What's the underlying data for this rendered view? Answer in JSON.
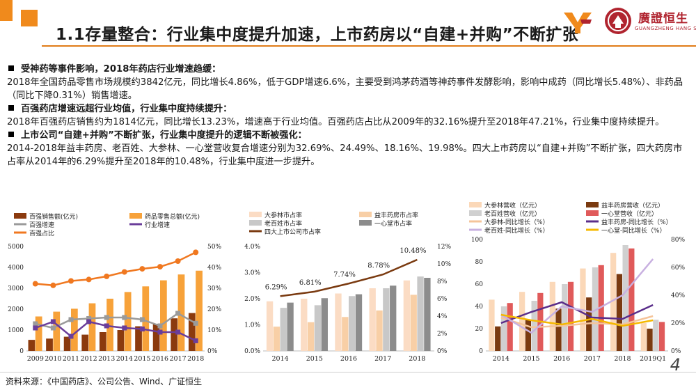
{
  "header": {
    "title": "1.1存量整合：行业集中度提升加速，上市药房以“自建+并购”不断扩张",
    "brand_cn": "廣證恒生",
    "brand_en": "GUANGZHENG HANG SENG",
    "logo_mark": "YF"
  },
  "sections": [
    {
      "heading": "受神药等事件影响，2018年药店行业增速趋缓：",
      "body": "2018年全国药品零售市场规模约3842亿元，同比增长4.86%，低于GDP增速6.6%，主要受到鸿茅药酒等神药事件发酵影响，影响中成药（同比增长5.48%）、非药品（同比下降0.31%）销售增速。"
    },
    {
      "heading": "百强药店增速远超行业均值，行业集中度持续提升：",
      "body": "2018年百强药店销售约为1814亿元，同比增长13.23%，增速高于行业均值。百强药店占比从2009年的32.16%提升至2018年47.21%，行业集中度持续提升。"
    },
    {
      "heading": "上市公司“自建+并购”不断扩张，行业集中度提升的逻辑不断被强化：",
      "body": "2014-2018年益丰药房、老百姓、大参林、一心堂营收复合增速分别为32.69%、24.49%、18.16%、19.98%。四大上市药房以“自建+并购”不断扩张，四大药房市占率从2014年的6.29%提升至2018年的10.48%，行业集中度进一步提升。"
    }
  ],
  "footer": {
    "source": "资料来源：《中国药店》、公司公告、Wind、广证恒生",
    "page_number": "4"
  },
  "chart_data": [
    {
      "type": "bar",
      "legend": [
        "百强销售额(亿元)",
        "药品零售总额(亿元)",
        "百强增速",
        "行业增速",
        "百强占比"
      ],
      "categories": [
        "2009",
        "2010",
        "2011",
        "2012",
        "2013",
        "2014",
        "2015",
        "2016",
        "2017",
        "2018"
      ],
      "series": [
        {
          "name": "百强销售额(亿元)",
          "kind": "bar",
          "axis": "left",
          "color": "#8b3a0e",
          "values": [
            530,
            590,
            680,
            780,
            900,
            1000,
            1180,
            1300,
            1560,
            1814
          ]
        },
        {
          "name": "药品零售总额(亿元)",
          "kind": "bar",
          "axis": "left",
          "color": "#f7a23a",
          "values": [
            1650,
            1880,
            2020,
            2280,
            2500,
            2820,
            3090,
            3380,
            3660,
            3842
          ]
        },
        {
          "name": "百强增速",
          "kind": "line",
          "axis": "right",
          "color": "#9a9a9a",
          "marker": "square",
          "values": [
            13,
            11,
            15,
            15.5,
            16,
            16,
            15,
            12,
            18,
            13.23
          ]
        },
        {
          "name": "行业增速",
          "kind": "line",
          "axis": "right",
          "color": "#6a3d9a",
          "marker": "square",
          "values": [
            11,
            14,
            7,
            14,
            12,
            11,
            10.5,
            9,
            9,
            4.86
          ]
        },
        {
          "name": "百强占比",
          "kind": "line",
          "axis": "right",
          "color": "#f07820",
          "marker": "circle",
          "values": [
            32.16,
            31.4,
            33.5,
            34.2,
            35.7,
            37.8,
            39.3,
            40.3,
            43,
            47.21
          ]
        }
      ],
      "y_left": {
        "min": 0,
        "max": 5000,
        "ticks": [
          "0",
          "1000",
          "2000",
          "3000",
          "4000",
          "5000"
        ]
      },
      "y_right": {
        "min": 0,
        "max": 50,
        "ticks": [
          "0%",
          "10%",
          "20%",
          "30%",
          "40%",
          "50%"
        ]
      }
    },
    {
      "type": "bar",
      "legend": [
        "大参林市占率",
        "益丰药房市占率",
        "老百姓市占率",
        "一心堂市占率",
        "四大上市公司市占率"
      ],
      "categories": [
        "2014",
        "2015",
        "2016",
        "2017",
        "2018"
      ],
      "series": [
        {
          "name": "大参林市占率",
          "kind": "bar",
          "axis": "left",
          "color": "#fbdcc4",
          "values": [
            1.9,
            2.0,
            2.2,
            2.4,
            2.7
          ]
        },
        {
          "name": "益丰药房市占率",
          "kind": "bar",
          "axis": "left",
          "color": "#f8cfa6",
          "values": [
            0.93,
            1.1,
            1.3,
            1.55,
            2.15
          ]
        },
        {
          "name": "老百姓市占率",
          "kind": "bar",
          "axis": "left",
          "color": "#c8c8c8",
          "values": [
            1.65,
            1.75,
            2.1,
            2.4,
            2.85
          ]
        },
        {
          "name": "一心堂市占率",
          "kind": "bar",
          "axis": "left",
          "color": "#8c8c8c",
          "values": [
            1.85,
            2.02,
            2.17,
            2.5,
            2.8
          ]
        },
        {
          "name": "四大上市公司市占率",
          "kind": "line",
          "axis": "right",
          "color": "#7a3a10",
          "values": [
            6.29,
            6.81,
            7.74,
            8.78,
            10.48
          ],
          "labels": [
            "6.29%",
            "6.81%",
            "7.74%",
            "8.78%",
            "10.48%"
          ]
        }
      ],
      "y_left": {
        "min": 0,
        "max": 4,
        "ticks": [
          "0.0%",
          "1.0%",
          "2.0%",
          "3.0%",
          "4.0%"
        ]
      },
      "y_right": {
        "min": 0,
        "max": 12,
        "ticks": [
          "0%",
          "2%",
          "4%",
          "6%",
          "8%",
          "10%",
          "12%"
        ]
      }
    },
    {
      "type": "bar",
      "legend": [
        "大参林营收（亿元）",
        "益丰药房营收（亿元）",
        "老百姓营收（亿元）",
        "一心堂营收（亿元）",
        "大参林-同比增长（%）",
        "益丰药房-同比增长（%）",
        "老百姓-同比增长（%）",
        "一心堂-同比增长（%）"
      ],
      "categories": [
        "2014",
        "2015",
        "2016",
        "2017",
        "2018",
        "2019Q1"
      ],
      "series": [
        {
          "name": "大参林营收（亿元）",
          "kind": "bar",
          "axis": "left",
          "color": "#fbd8b8",
          "values": [
            46,
            53,
            62,
            74,
            88,
            25
          ]
        },
        {
          "name": "益丰药房营收（亿元）",
          "kind": "bar",
          "axis": "left",
          "color": "#7a3a10",
          "values": [
            22,
            28,
            38,
            48,
            69,
            20
          ]
        },
        {
          "name": "老百姓营收（亿元）",
          "kind": "bar",
          "axis": "left",
          "color": "#d0d0d0",
          "values": [
            40,
            45,
            60,
            75,
            95,
            28
          ]
        },
        {
          "name": "一心堂营收（亿元）",
          "kind": "bar",
          "axis": "left",
          "color": "#e05a5a",
          "values": [
            43,
            52,
            62,
            77,
            92,
            26
          ]
        },
        {
          "name": "大参林-同比增长（%）",
          "kind": "line",
          "axis": "right",
          "color": "#f5c49a",
          "values": [
            24,
            17,
            18,
            20,
            19,
            25
          ]
        },
        {
          "name": "益丰药房-同比增长（%）",
          "kind": "line",
          "axis": "right",
          "color": "#5a2d8a",
          "values": [
            20,
            28,
            35,
            24,
            23,
            33
          ]
        },
        {
          "name": "老百姓-同比增长（%）",
          "kind": "line",
          "axis": "right",
          "color": "#c8b0e0",
          "values": [
            26,
            13,
            32,
            28,
            40,
            66
          ]
        },
        {
          "name": "一心堂-同比增长（%）",
          "kind": "line",
          "axis": "right",
          "color": "#f5b800",
          "values": [
            26,
            22,
            19,
            23,
            18,
            22
          ]
        }
      ],
      "y_left": {
        "min": 0,
        "max": 100,
        "ticks": [
          "0",
          "20",
          "40",
          "60",
          "80",
          "100"
        ]
      },
      "y_right": {
        "min": 0,
        "max": 80,
        "ticks": [
          "0%",
          "20%",
          "40%",
          "60%",
          "80%"
        ]
      }
    }
  ]
}
